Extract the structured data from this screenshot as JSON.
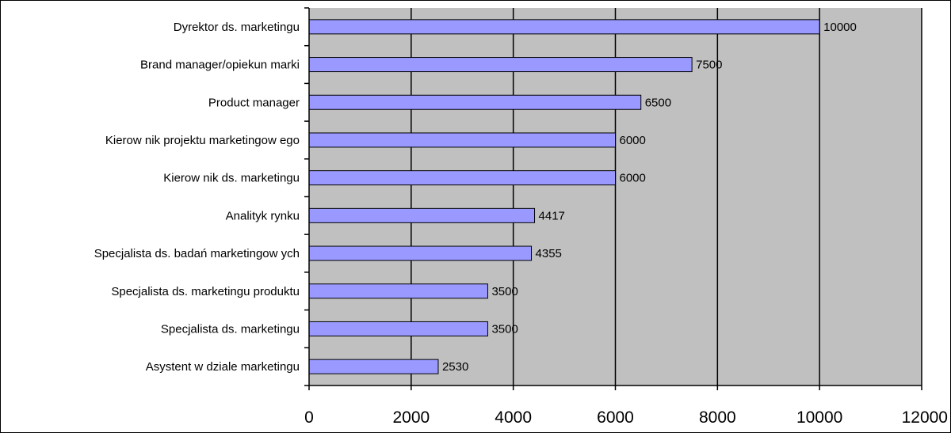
{
  "chart_data": {
    "type": "bar",
    "orientation": "horizontal",
    "categories": [
      "Dyrektor ds. marketingu",
      "Brand manager/opiekun marki",
      "Product manager",
      "Kierow nik projektu marketingow ego",
      "Kierow nik ds. marketingu",
      "Analityk rynku",
      "Specjalista ds. badań marketingow ych",
      "Specjalista ds. marketingu produktu",
      "Specjalista ds. marketingu",
      "Asystent w  dziale marketingu"
    ],
    "values": [
      10000,
      7500,
      6500,
      6000,
      6000,
      4417,
      4355,
      3500,
      3500,
      2530
    ],
    "value_labels": [
      "10000",
      "7500",
      "6500",
      "6000",
      "6000",
      "4417",
      "4355",
      "3500",
      "3500",
      "2530"
    ],
    "xlim": [
      0,
      12000
    ],
    "x_ticks": [
      0,
      2000,
      4000,
      6000,
      8000,
      10000,
      12000
    ],
    "x_tick_labels": [
      "0",
      "2000",
      "4000",
      "6000",
      "8000",
      "10000",
      "12000"
    ],
    "grid": true,
    "legend": "none",
    "colors": {
      "bar_fill": "#9999ff",
      "bar_stroke": "#000000",
      "plot_background": "#c0c0c0",
      "gridline": "#000000"
    }
  }
}
